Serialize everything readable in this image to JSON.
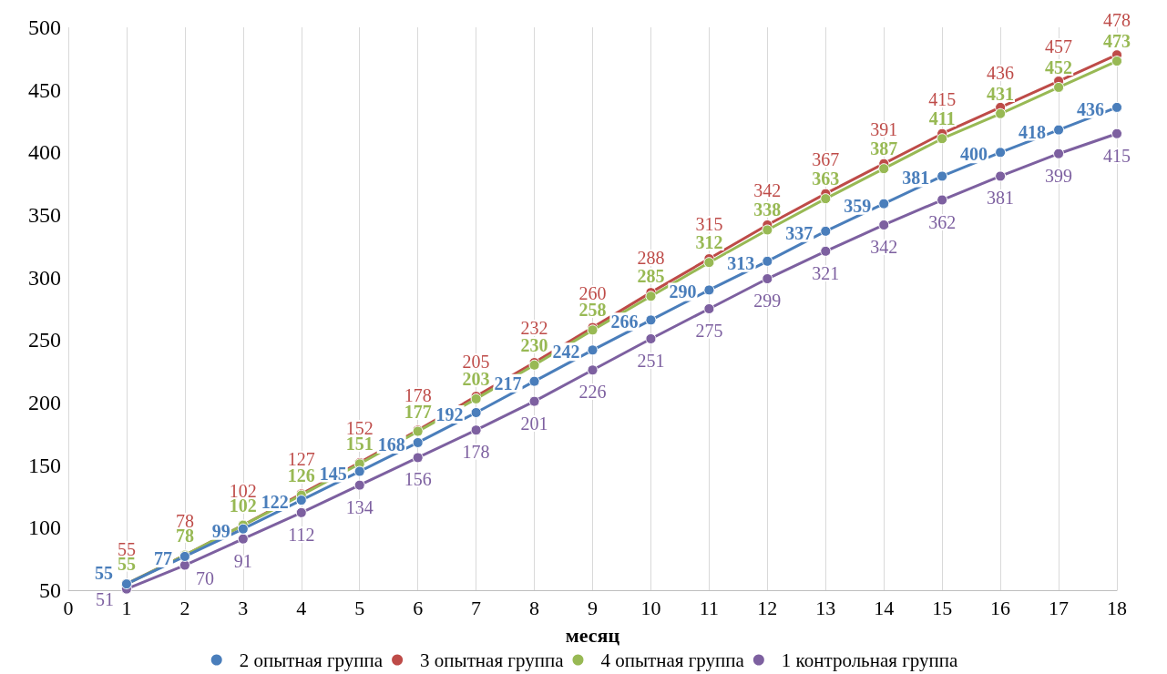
{
  "chart_data": {
    "type": "line",
    "xlabel": "месяц",
    "x": [
      1,
      2,
      3,
      4,
      5,
      6,
      7,
      8,
      9,
      10,
      11,
      12,
      13,
      14,
      15,
      16,
      17,
      18
    ],
    "xlim": [
      0,
      18
    ],
    "xticks": [
      0,
      1,
      2,
      3,
      4,
      5,
      6,
      7,
      8,
      9,
      10,
      11,
      12,
      13,
      14,
      15,
      16,
      17,
      18
    ],
    "ylim": [
      50,
      500
    ],
    "yticks": [
      50,
      100,
      150,
      200,
      250,
      300,
      350,
      400,
      450,
      500
    ],
    "grid": "x",
    "legend": "bottom",
    "marker": "circle",
    "line_style": "solid",
    "data_labels": true,
    "series": [
      {
        "name": "2 опытная группа",
        "color": "#4a7ebb",
        "values": [
          55,
          77,
          99,
          122,
          145,
          168,
          192,
          217,
          242,
          266,
          290,
          313,
          337,
          359,
          381,
          400,
          418,
          436
        ]
      },
      {
        "name": "3 опытная группа",
        "color": "#be4b48",
        "values": [
          55,
          78,
          102,
          127,
          152,
          178,
          205,
          232,
          260,
          288,
          315,
          342,
          367,
          391,
          415,
          436,
          457,
          478
        ]
      },
      {
        "name": "4 опытная группа",
        "color": "#98b954",
        "values": [
          55,
          78,
          102,
          126,
          151,
          177,
          203,
          230,
          258,
          285,
          312,
          338,
          363,
          387,
          411,
          431,
          452,
          473
        ]
      },
      {
        "name": "1 контрольная группа",
        "color": "#7d60a0",
        "values": [
          51,
          70,
          91,
          112,
          134,
          156,
          178,
          201,
          226,
          251,
          275,
          299,
          321,
          342,
          362,
          381,
          399,
          415
        ]
      }
    ]
  }
}
